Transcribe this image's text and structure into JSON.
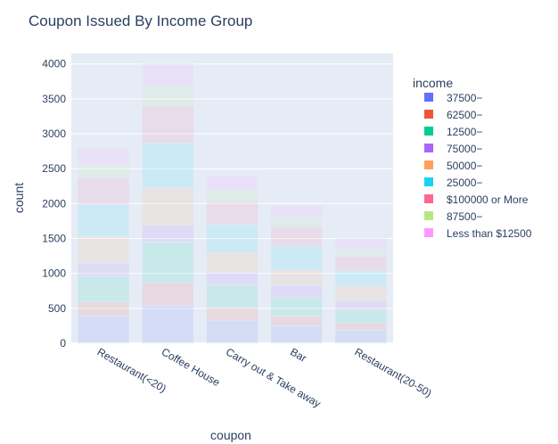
{
  "chart_data": {
    "type": "bar",
    "stacked": true,
    "title": "Coupon Issued By Income Group",
    "xlabel": "coupon",
    "ylabel": "count",
    "ylim": [
      0,
      4150
    ],
    "yticks": [
      0,
      500,
      1000,
      1500,
      2000,
      2500,
      3000,
      3500,
      4000
    ],
    "grid": true,
    "bar_opacity": 0.12,
    "legend_title": "income",
    "legend_position": "right",
    "categories": [
      "Restaurant(<20)",
      "Coffee House",
      "Carry out & Take away",
      "Bar",
      "Restaurant(20-50)"
    ],
    "series": [
      {
        "name": "37500−",
        "color": "#636efa",
        "values": [
          390,
          540,
          330,
          250,
          190
        ]
      },
      {
        "name": "62500−",
        "color": "#EF553B",
        "values": [
          200,
          330,
          180,
          140,
          100
        ]
      },
      {
        "name": "12500−",
        "color": "#00cc96",
        "values": [
          370,
          580,
          330,
          270,
          190
        ]
      },
      {
        "name": "75000−",
        "color": "#ab63fa",
        "values": [
          190,
          240,
          180,
          170,
          130
        ]
      },
      {
        "name": "50000−",
        "color": "#FFA15A",
        "values": [
          380,
          540,
          280,
          220,
          210
        ]
      },
      {
        "name": "25000−",
        "color": "#19d3f3",
        "values": [
          460,
          640,
          400,
          340,
          220
        ]
      },
      {
        "name": "$100000 or More",
        "color": "#FF6692",
        "values": [
          380,
          530,
          320,
          280,
          200
        ]
      },
      {
        "name": "87500−",
        "color": "#B6E880",
        "values": [
          190,
          290,
          170,
          130,
          110
        ]
      },
      {
        "name": "Less than $12500",
        "color": "#FF97FF",
        "values": [
          230,
          310,
          210,
          170,
          150
        ]
      }
    ]
  }
}
